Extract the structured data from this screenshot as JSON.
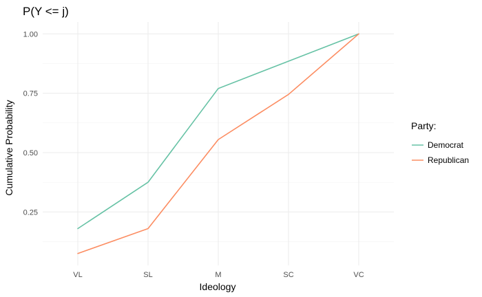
{
  "chart_data": {
    "type": "line",
    "title": "P(Y <= j)",
    "xlabel": "Ideology",
    "ylabel": "Cumulative Probability",
    "categories": [
      "VL",
      "SL",
      "M",
      "SC",
      "VC"
    ],
    "ylim": [
      0.025,
      1.05
    ],
    "yticks": [
      0.25,
      0.5,
      0.75,
      1.0
    ],
    "ytick_labels": [
      "0.25",
      "0.50",
      "0.75",
      "1.00"
    ],
    "grid": true,
    "legend": {
      "title": "Party:",
      "position": "right"
    },
    "series": [
      {
        "name": "Democrat",
        "color": "#66c2a5",
        "values": [
          0.18,
          0.375,
          0.77,
          0.885,
          1.0
        ]
      },
      {
        "name": "Republican",
        "color": "#fc8d62",
        "values": [
          0.075,
          0.18,
          0.555,
          0.745,
          1.0
        ]
      }
    ]
  }
}
